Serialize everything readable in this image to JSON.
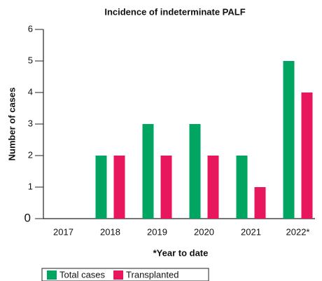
{
  "chart_data": {
    "type": "bar",
    "title": "Incidence of indeterminate PALF",
    "x_label": "*Year to date",
    "y_label": "Number of cases",
    "categories": [
      "2017",
      "2018",
      "2019",
      "2020",
      "2021",
      "2022*"
    ],
    "series": [
      {
        "name": "Total cases",
        "color": "#00a562",
        "values": [
          0,
          2,
          3,
          3,
          2,
          5
        ]
      },
      {
        "name": "Transplanted",
        "color": "#e8175d",
        "values": [
          0,
          2,
          2,
          2,
          1,
          4
        ]
      }
    ],
    "ylim": [
      0,
      6
    ],
    "yticks": [
      0,
      1,
      2,
      3,
      4,
      5,
      6
    ],
    "grid": false
  }
}
